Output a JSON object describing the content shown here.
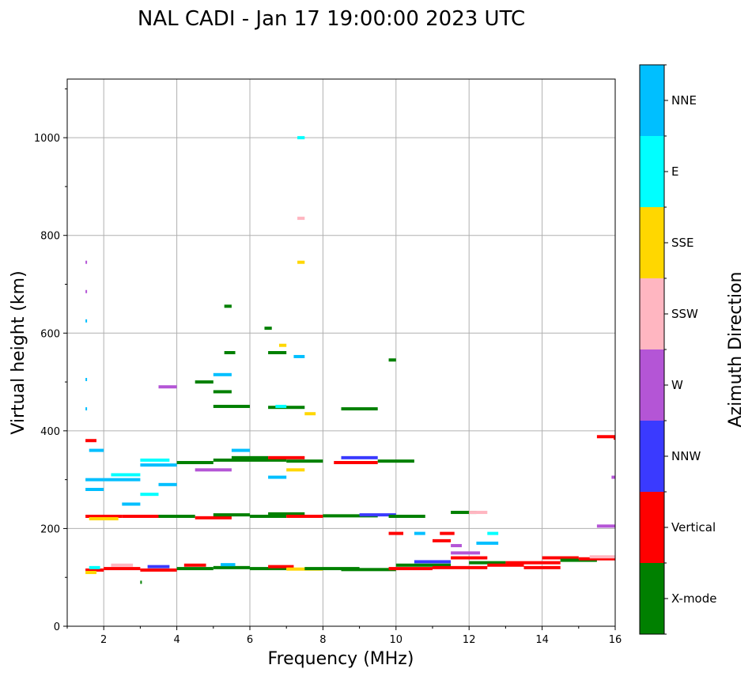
{
  "chart_data": {
    "type": "scatter",
    "title": "NAL CADI - Jan 17 19:00:00 2023 UTC",
    "xlabel": "Frequency (MHz)",
    "ylabel": "Virtual height (km)",
    "xlim": [
      1,
      16
    ],
    "ylim": [
      0,
      1120
    ],
    "x_ticks": [
      2,
      4,
      6,
      8,
      10,
      12,
      14,
      16
    ],
    "y_ticks": [
      0,
      200,
      400,
      600,
      800,
      1000
    ],
    "grid": true,
    "colorbar": {
      "label": "Azimuth Direction",
      "categories": [
        {
          "name": "X-mode",
          "color": "#008000"
        },
        {
          "name": "Vertical",
          "color": "#ff0000"
        },
        {
          "name": "NNW",
          "color": "#3a3aff"
        },
        {
          "name": "W",
          "color": "#b455d6"
        },
        {
          "name": "SSW",
          "color": "#ffb6c1"
        },
        {
          "name": "SSE",
          "color": "#ffd700"
        },
        {
          "name": "E",
          "color": "#00ffff"
        },
        {
          "name": "NNE",
          "color": "#00bfff"
        }
      ]
    },
    "segments": [
      {
        "f0": 1.5,
        "f1": 2.0,
        "h": 115,
        "dir": "Vertical"
      },
      {
        "f0": 1.6,
        "f1": 1.9,
        "h": 120,
        "dir": "E"
      },
      {
        "f0": 1.5,
        "f1": 1.8,
        "h": 110,
        "dir": "SSE"
      },
      {
        "f0": 2.0,
        "f1": 3.0,
        "h": 118,
        "dir": "Vertical"
      },
      {
        "f0": 2.2,
        "f1": 2.8,
        "h": 125,
        "dir": "SSW"
      },
      {
        "f0": 3.0,
        "f1": 4.0,
        "h": 115,
        "dir": "Vertical"
      },
      {
        "f0": 3.2,
        "f1": 3.8,
        "h": 122,
        "dir": "NNW"
      },
      {
        "f0": 4.0,
        "f1": 5.0,
        "h": 118,
        "dir": "X-mode"
      },
      {
        "f0": 4.2,
        "f1": 4.8,
        "h": 125,
        "dir": "Vertical"
      },
      {
        "f0": 5.0,
        "f1": 6.0,
        "h": 120,
        "dir": "X-mode"
      },
      {
        "f0": 5.2,
        "f1": 5.6,
        "h": 126,
        "dir": "NNE"
      },
      {
        "f0": 6.0,
        "f1": 7.0,
        "h": 118,
        "dir": "X-mode"
      },
      {
        "f0": 6.5,
        "f1": 7.2,
        "h": 122,
        "dir": "Vertical"
      },
      {
        "f0": 7.0,
        "f1": 8.0,
        "h": 117,
        "dir": "SSE"
      },
      {
        "f0": 7.5,
        "f1": 9.0,
        "h": 118,
        "dir": "X-mode"
      },
      {
        "f0": 8.5,
        "f1": 10.0,
        "h": 116,
        "dir": "X-mode"
      },
      {
        "f0": 9.8,
        "f1": 11.0,
        "h": 118,
        "dir": "Vertical"
      },
      {
        "f0": 10.0,
        "f1": 11.5,
        "h": 125,
        "dir": "X-mode"
      },
      {
        "f0": 10.5,
        "f1": 11.5,
        "h": 132,
        "dir": "NNW"
      },
      {
        "f0": 11.0,
        "f1": 12.5,
        "h": 120,
        "dir": "Vertical"
      },
      {
        "f0": 11.5,
        "f1": 12.5,
        "h": 140,
        "dir": "Vertical"
      },
      {
        "f0": 11.5,
        "f1": 12.3,
        "h": 150,
        "dir": "W"
      },
      {
        "f0": 12.0,
        "f1": 13.0,
        "h": 130,
        "dir": "X-mode"
      },
      {
        "f0": 12.5,
        "f1": 13.5,
        "h": 125,
        "dir": "Vertical"
      },
      {
        "f0": 13.0,
        "f1": 14.5,
        "h": 130,
        "dir": "Vertical"
      },
      {
        "f0": 13.5,
        "f1": 14.5,
        "h": 120,
        "dir": "Vertical"
      },
      {
        "f0": 14.0,
        "f1": 15.0,
        "h": 140,
        "dir": "Vertical"
      },
      {
        "f0": 14.5,
        "f1": 15.5,
        "h": 135,
        "dir": "X-mode"
      },
      {
        "f0": 15.0,
        "f1": 16.0,
        "h": 138,
        "dir": "Vertical"
      },
      {
        "f0": 15.3,
        "f1": 16.0,
        "h": 142,
        "dir": "SSW"
      },
      {
        "f0": 10.5,
        "f1": 10.8,
        "h": 190,
        "dir": "NNE"
      },
      {
        "f0": 9.8,
        "f1": 10.2,
        "h": 190,
        "dir": "Vertical"
      },
      {
        "f0": 11.2,
        "f1": 11.6,
        "h": 190,
        "dir": "Vertical"
      },
      {
        "f0": 12.5,
        "f1": 12.8,
        "h": 190,
        "dir": "E"
      },
      {
        "f0": 11.0,
        "f1": 11.5,
        "h": 175,
        "dir": "Vertical"
      },
      {
        "f0": 12.2,
        "f1": 12.8,
        "h": 170,
        "dir": "NNE"
      },
      {
        "f0": 11.5,
        "f1": 11.8,
        "h": 165,
        "dir": "W"
      },
      {
        "f0": 1.5,
        "f1": 2.5,
        "h": 225,
        "dir": "Vertical"
      },
      {
        "f0": 1.6,
        "f1": 2.4,
        "h": 220,
        "dir": "SSE"
      },
      {
        "f0": 2.5,
        "f1": 3.5,
        "h": 225,
        "dir": "Vertical"
      },
      {
        "f0": 3.5,
        "f1": 4.5,
        "h": 225,
        "dir": "X-mode"
      },
      {
        "f0": 4.5,
        "f1": 5.5,
        "h": 222,
        "dir": "Vertical"
      },
      {
        "f0": 5.0,
        "f1": 6.0,
        "h": 228,
        "dir": "X-mode"
      },
      {
        "f0": 6.0,
        "f1": 7.0,
        "h": 225,
        "dir": "X-mode"
      },
      {
        "f0": 6.5,
        "f1": 7.5,
        "h": 230,
        "dir": "X-mode"
      },
      {
        "f0": 7.0,
        "f1": 8.0,
        "h": 225,
        "dir": "Vertical"
      },
      {
        "f0": 8.0,
        "f1": 9.5,
        "h": 226,
        "dir": "X-mode"
      },
      {
        "f0": 9.0,
        "f1": 10.0,
        "h": 228,
        "dir": "NNW"
      },
      {
        "f0": 9.8,
        "f1": 10.8,
        "h": 225,
        "dir": "X-mode"
      },
      {
        "f0": 11.5,
        "f1": 12.2,
        "h": 233,
        "dir": "X-mode"
      },
      {
        "f0": 12.0,
        "f1": 12.5,
        "h": 233,
        "dir": "SSW"
      },
      {
        "f0": 1.5,
        "f1": 2.0,
        "h": 280,
        "dir": "NNE"
      },
      {
        "f0": 1.5,
        "f1": 2.0,
        "h": 300,
        "dir": "NNE"
      },
      {
        "f0": 2.0,
        "f1": 3.0,
        "h": 300,
        "dir": "NNE"
      },
      {
        "f0": 2.2,
        "f1": 3.0,
        "h": 310,
        "dir": "E"
      },
      {
        "f0": 3.0,
        "f1": 4.0,
        "h": 330,
        "dir": "NNE"
      },
      {
        "f0": 3.0,
        "f1": 3.8,
        "h": 340,
        "dir": "E"
      },
      {
        "f0": 1.6,
        "f1": 2.0,
        "h": 360,
        "dir": "NNE"
      },
      {
        "f0": 1.5,
        "f1": 1.8,
        "h": 380,
        "dir": "Vertical"
      },
      {
        "f0": 4.0,
        "f1": 5.0,
        "h": 335,
        "dir": "X-mode"
      },
      {
        "f0": 4.5,
        "f1": 5.5,
        "h": 320,
        "dir": "W"
      },
      {
        "f0": 5.0,
        "f1": 6.0,
        "h": 340,
        "dir": "X-mode"
      },
      {
        "f0": 5.5,
        "f1": 6.5,
        "h": 345,
        "dir": "X-mode"
      },
      {
        "f0": 6.0,
        "f1": 7.0,
        "h": 340,
        "dir": "X-mode"
      },
      {
        "f0": 6.5,
        "f1": 7.5,
        "h": 345,
        "dir": "Vertical"
      },
      {
        "f0": 7.0,
        "f1": 8.0,
        "h": 338,
        "dir": "X-mode"
      },
      {
        "f0": 8.3,
        "f1": 9.5,
        "h": 335,
        "dir": "Vertical"
      },
      {
        "f0": 8.5,
        "f1": 9.5,
        "h": 345,
        "dir": "NNW"
      },
      {
        "f0": 9.5,
        "f1": 10.5,
        "h": 338,
        "dir": "X-mode"
      },
      {
        "f0": 7.0,
        "f1": 7.5,
        "h": 320,
        "dir": "SSE"
      },
      {
        "f0": 6.5,
        "f1": 7.0,
        "h": 305,
        "dir": "NNE"
      },
      {
        "f0": 5.5,
        "f1": 6.0,
        "h": 360,
        "dir": "NNE"
      },
      {
        "f0": 3.5,
        "f1": 4.0,
        "h": 290,
        "dir": "NNE"
      },
      {
        "f0": 3.0,
        "f1": 3.5,
        "h": 270,
        "dir": "E"
      },
      {
        "f0": 2.5,
        "f1": 3.0,
        "h": 250,
        "dir": "NNE"
      },
      {
        "f0": 16.0,
        "f1": 16.0,
        "h": 385,
        "dir": "Vertical"
      },
      {
        "f0": 15.5,
        "f1": 16.0,
        "h": 388,
        "dir": "Vertical"
      },
      {
        "f0": 15.5,
        "f1": 16.0,
        "h": 205,
        "dir": "W"
      },
      {
        "f0": 15.9,
        "f1": 16.0,
        "h": 305,
        "dir": "W"
      },
      {
        "f0": 5.0,
        "f1": 6.0,
        "h": 450,
        "dir": "X-mode"
      },
      {
        "f0": 6.5,
        "f1": 7.5,
        "h": 448,
        "dir": "X-mode"
      },
      {
        "f0": 6.7,
        "f1": 7.0,
        "h": 450,
        "dir": "E"
      },
      {
        "f0": 8.5,
        "f1": 9.5,
        "h": 445,
        "dir": "X-mode"
      },
      {
        "f0": 7.5,
        "f1": 7.8,
        "h": 435,
        "dir": "SSE"
      },
      {
        "f0": 4.5,
        "f1": 5.0,
        "h": 500,
        "dir": "X-mode"
      },
      {
        "f0": 5.0,
        "f1": 5.5,
        "h": 515,
        "dir": "NNE"
      },
      {
        "f0": 5.0,
        "f1": 5.5,
        "h": 480,
        "dir": "X-mode"
      },
      {
        "f0": 3.5,
        "f1": 4.0,
        "h": 490,
        "dir": "W"
      },
      {
        "f0": 6.8,
        "f1": 7.0,
        "h": 575,
        "dir": "SSE"
      },
      {
        "f0": 6.5,
        "f1": 7.0,
        "h": 560,
        "dir": "X-mode"
      },
      {
        "f0": 7.2,
        "f1": 7.5,
        "h": 552,
        "dir": "NNE"
      },
      {
        "f0": 5.3,
        "f1": 5.6,
        "h": 560,
        "dir": "X-mode"
      },
      {
        "f0": 9.8,
        "f1": 10.0,
        "h": 545,
        "dir": "X-mode"
      },
      {
        "f0": 6.4,
        "f1": 6.6,
        "h": 610,
        "dir": "X-mode"
      },
      {
        "f0": 5.3,
        "f1": 5.5,
        "h": 655,
        "dir": "X-mode"
      },
      {
        "f0": 7.3,
        "f1": 7.5,
        "h": 745,
        "dir": "SSE"
      },
      {
        "f0": 7.3,
        "f1": 7.5,
        "h": 835,
        "dir": "SSW"
      },
      {
        "f0": 7.3,
        "f1": 7.5,
        "h": 1000,
        "dir": "E"
      },
      {
        "f0": 1.5,
        "f1": 1.5,
        "h": 745,
        "dir": "W"
      },
      {
        "f0": 1.5,
        "f1": 1.5,
        "h": 625,
        "dir": "NNE"
      },
      {
        "f0": 1.5,
        "f1": 1.5,
        "h": 685,
        "dir": "W"
      },
      {
        "f0": 1.5,
        "f1": 1.5,
        "h": 505,
        "dir": "NNE"
      },
      {
        "f0": 1.5,
        "f1": 1.5,
        "h": 445,
        "dir": "NNE"
      },
      {
        "f0": 3.0,
        "f1": 3.0,
        "h": 90,
        "dir": "X-mode"
      }
    ]
  }
}
